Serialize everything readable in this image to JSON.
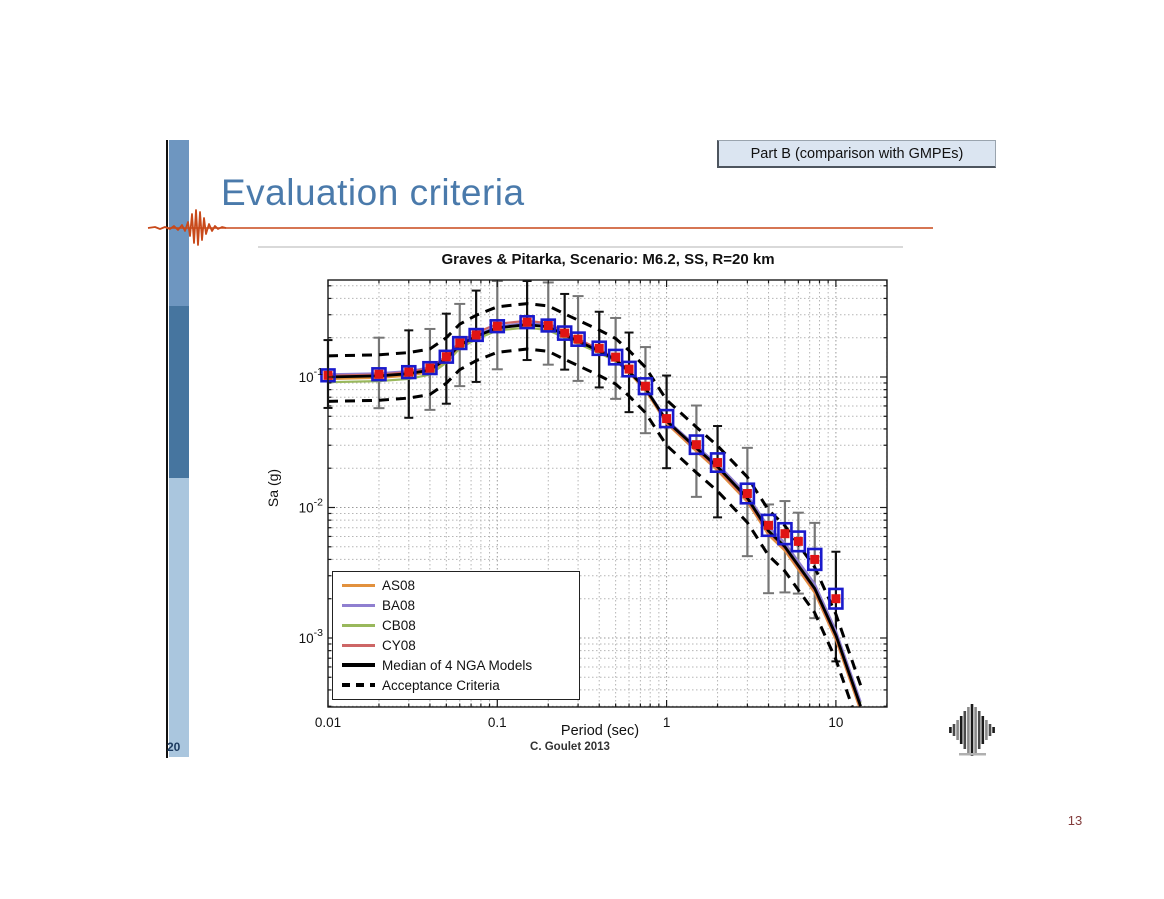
{
  "slide": {
    "badge": "Part B (comparison with GMPEs)",
    "title": "Evaluation criteria",
    "sidebar_page_number": "20",
    "corner_page_number": "13",
    "colors": {
      "title_blue": "#4a7aab",
      "accent_orange": "#c8491a",
      "sidebar_top": "#6e96c0",
      "sidebar_mid": "#46759f",
      "sidebar_bottom": "#aac6de",
      "badge_bg": "#dbe5f1",
      "corner_number": "#823b3b"
    }
  },
  "chart_data": {
    "type": "line",
    "title": "Graves & Pitarka, Scenario: M6.2, SS, R=20 km",
    "xlabel": "Period (sec)",
    "ylabel": "Sa (g)",
    "caption": "C. Goulet 2013",
    "xlim": [
      0.01,
      20
    ],
    "ylim": [
      0.0003,
      0.553
    ],
    "x_scale": "log",
    "y_scale": "log",
    "grid": "log minor dotted",
    "legend_position": "lower-left",
    "xticks": [
      {
        "label": "0.01",
        "value": 0.01
      },
      {
        "label": "0.1",
        "value": 0.1
      },
      {
        "label": "1",
        "value": 1
      },
      {
        "label": "10",
        "value": 10
      }
    ],
    "yticks": [
      {
        "base": "10",
        "exp": "-1",
        "value": 0.1
      },
      {
        "base": "10",
        "exp": "-2",
        "value": 0.01
      },
      {
        "base": "10",
        "exp": "-3",
        "value": 0.001
      }
    ],
    "legend": [
      {
        "label": "AS08",
        "color": "#e2913d",
        "style": "solid",
        "weight": 3
      },
      {
        "label": "BA08",
        "color": "#8f7fd0",
        "style": "solid",
        "weight": 3
      },
      {
        "label": "CB08",
        "color": "#99b85c",
        "style": "solid",
        "weight": 3
      },
      {
        "label": "CY08",
        "color": "#cd6666",
        "style": "solid",
        "weight": 3
      },
      {
        "label": "Median of 4 NGA Models",
        "color": "#000000",
        "style": "solid",
        "weight": 4
      },
      {
        "label": "Acceptance Criteria",
        "color": "#000000",
        "style": "dashed",
        "weight": 4
      }
    ],
    "median_curve": {
      "x": [
        0.01,
        0.02,
        0.03,
        0.04,
        0.05,
        0.06,
        0.075,
        0.1,
        0.15,
        0.2,
        0.25,
        0.3,
        0.4,
        0.5,
        0.6,
        0.75,
        1,
        1.5,
        2,
        3,
        4,
        5,
        7.5,
        10,
        14
      ],
      "sa": [
        0.1,
        0.102,
        0.106,
        0.113,
        0.138,
        0.175,
        0.205,
        0.238,
        0.252,
        0.242,
        0.21,
        0.188,
        0.158,
        0.136,
        0.11,
        0.082,
        0.046,
        0.0285,
        0.0205,
        0.0118,
        0.0066,
        0.005,
        0.0024,
        0.00105,
        0.0003
      ]
    },
    "gmpe_offsets_dex": {
      "AS08": [
        -0.015,
        -0.015,
        -0.015,
        -0.015,
        -0.01,
        -0.01,
        -0.005,
        0.005,
        0.012,
        0.012,
        0.008,
        0.005,
        0,
        -0.005,
        -0.01,
        -0.015,
        -0.02,
        -0.025,
        -0.03,
        -0.03,
        -0.03,
        -0.03,
        -0.035,
        -0.035,
        -0.035
      ],
      "BA08": [
        0.02,
        0.02,
        0.02,
        0.02,
        0.015,
        0.012,
        0.01,
        0.01,
        0.015,
        0.015,
        0.012,
        0.01,
        0.008,
        0.005,
        0.005,
        0.008,
        0.01,
        0.015,
        0.02,
        0.025,
        0.03,
        0.03,
        0.035,
        0.035,
        0.035
      ],
      "CB08": [
        -0.04,
        -0.04,
        -0.04,
        -0.035,
        -0.03,
        -0.025,
        -0.022,
        -0.02,
        -0.022,
        -0.025,
        -0.022,
        -0.02,
        -0.015,
        -0.01,
        -0.005,
        0,
        0.008,
        0.012,
        0.015,
        0.02,
        0.022,
        0.022,
        0.025,
        0.025,
        0.025
      ],
      "CY08": [
        0.01,
        0.01,
        0.012,
        0.015,
        0.02,
        0.025,
        0.028,
        0.03,
        0.03,
        0.028,
        0.022,
        0.018,
        0.012,
        0.008,
        0.002,
        -0.005,
        -0.01,
        -0.012,
        -0.015,
        -0.015,
        -0.012,
        -0.012,
        -0.015,
        -0.015,
        -0.015
      ]
    },
    "acceptance_criteria": {
      "upper_factor": 1.45,
      "lower_factor": 0.65
    },
    "simulation_points": [
      [
        0.01,
        0.103,
        0.27,
        0.25,
        "k",
        0.045
      ],
      [
        0.02,
        0.105,
        0.28,
        0.26,
        "g",
        0.045
      ],
      [
        0.03,
        0.109,
        0.32,
        0.35,
        "k",
        0.045
      ],
      [
        0.04,
        0.117,
        0.3,
        0.32,
        "g",
        0.045
      ],
      [
        0.05,
        0.143,
        0.33,
        0.36,
        "k",
        0.045
      ],
      [
        0.06,
        0.182,
        0.3,
        0.33,
        "g",
        0.045
      ],
      [
        0.075,
        0.21,
        0.34,
        0.36,
        "k",
        0.045
      ],
      [
        0.1,
        0.245,
        0.35,
        0.33,
        "g",
        0.045
      ],
      [
        0.15,
        0.263,
        0.32,
        0.29,
        "k",
        0.045
      ],
      [
        0.2,
        0.248,
        0.33,
        0.3,
        "g",
        0.045
      ],
      [
        0.25,
        0.217,
        0.3,
        0.28,
        "k",
        0.05
      ],
      [
        0.3,
        0.195,
        0.33,
        0.32,
        "g",
        0.05
      ],
      [
        0.4,
        0.166,
        0.28,
        0.3,
        "k",
        0.05
      ],
      [
        0.5,
        0.142,
        0.3,
        0.32,
        "g",
        0.055
      ],
      [
        0.6,
        0.115,
        0.28,
        0.33,
        "k",
        0.055
      ],
      [
        0.75,
        0.085,
        0.3,
        0.36,
        "g",
        0.06
      ],
      [
        1.0,
        0.048,
        0.33,
        0.38,
        "k",
        0.065
      ],
      [
        1.5,
        0.0303,
        0.3,
        0.4,
        "g",
        0.07
      ],
      [
        2.0,
        0.0221,
        0.28,
        0.42,
        "k",
        0.07
      ],
      [
        3.0,
        0.0128,
        0.35,
        0.48,
        "g",
        0.075
      ],
      [
        4.0,
        0.0073,
        0.16,
        0.52,
        "g",
        0.08
      ],
      [
        5.0,
        0.0063,
        0.25,
        0.45,
        "g",
        0.08
      ],
      [
        6.0,
        0.0055,
        0.22,
        0.4,
        "g",
        0.075
      ],
      [
        7.5,
        0.004,
        0.28,
        0.45,
        "g",
        0.08
      ],
      [
        10.0,
        0.002,
        0.36,
        0.48,
        "k",
        0.075
      ]
    ],
    "point_style": {
      "marker_fill": "#e01414",
      "box_stroke": "#1a1acc",
      "whisker_gray": "#767676",
      "whisker_black": "#111111"
    }
  }
}
